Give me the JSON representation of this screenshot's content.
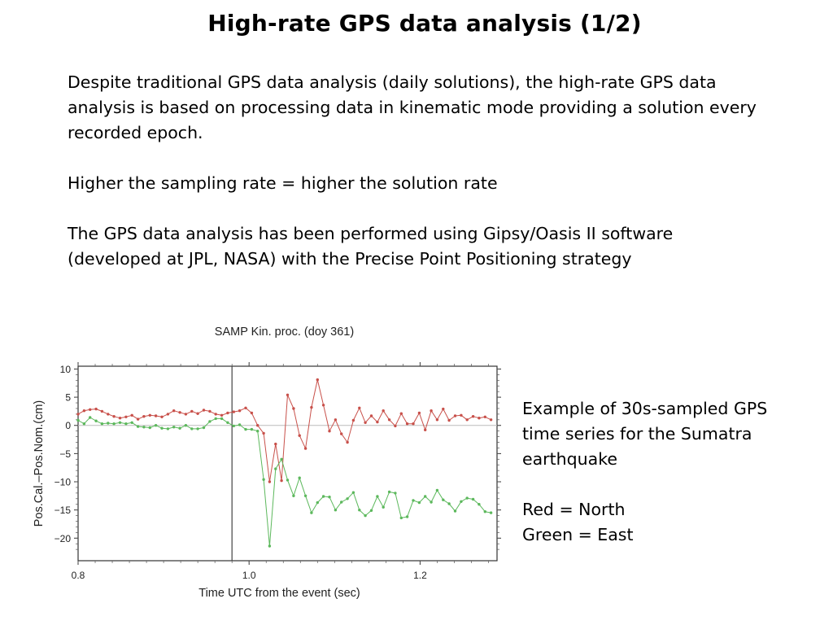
{
  "slide": {
    "title": "High-rate GPS data analysis (1/2)",
    "paragraphs": [
      "Despite traditional GPS data analysis (daily solutions), the high-rate GPS data analysis is based on processing data in kinematic mode providing a solution every recorded epoch.",
      "Higher the sampling rate = higher the solution rate",
      "The GPS data analysis has been performed using Gipsy/Oasis II software (developed at JPL, NASA) with the Precise Point Positioning strategy"
    ],
    "side_note": {
      "caption": "Example of 30s-sampled GPS time series for the Sumatra earthquake",
      "legend_red": "Red = North",
      "legend_green": "Green = East"
    }
  },
  "chart_data": {
    "type": "line",
    "title": "SAMP Kin. proc. (doy 361)",
    "xlabel": "Time UTC from the event (sec)",
    "ylabel": "Pos.Cal.–Pos.Nom.(cm)",
    "xlim": [
      0.8,
      1.29
    ],
    "ylim": [
      -24,
      10.5
    ],
    "x_ticks": [
      0.8,
      1.0,
      1.2
    ],
    "x_tick_labels": [
      "0.8",
      "1.0",
      "1.2"
    ],
    "y_ticks": [
      10,
      5,
      0,
      -5,
      -10,
      -15,
      -20
    ],
    "y_tick_labels": [
      "10",
      "5",
      "0",
      "−5",
      "−10",
      "−15",
      "−20"
    ],
    "event_line_x": 0.98,
    "zero_line": true,
    "grid": false,
    "series": [
      {
        "color": "#c8504a",
        "x": [
          0.8,
          0.807,
          0.814,
          0.821,
          0.828,
          0.835,
          0.842,
          0.849,
          0.856,
          0.863,
          0.87,
          0.877,
          0.884,
          0.891,
          0.898,
          0.905,
          0.912,
          0.919,
          0.926,
          0.933,
          0.94,
          0.947,
          0.954,
          0.961,
          0.968,
          0.975,
          0.982,
          0.989,
          0.996,
          1.003,
          1.01,
          1.017,
          1.024,
          1.031,
          1.038,
          1.045,
          1.052,
          1.059,
          1.066,
          1.073,
          1.08,
          1.087,
          1.094,
          1.101,
          1.108,
          1.115,
          1.122,
          1.129,
          1.136,
          1.143,
          1.15,
          1.157,
          1.164,
          1.171,
          1.178,
          1.185,
          1.192,
          1.199,
          1.206,
          1.213,
          1.22,
          1.227,
          1.234,
          1.241,
          1.248,
          1.255,
          1.262,
          1.269,
          1.276,
          1.283
        ],
        "y": [
          2.0,
          2.6,
          2.8,
          2.9,
          2.5,
          2.0,
          1.6,
          1.3,
          1.5,
          1.8,
          1.1,
          1.6,
          1.8,
          1.7,
          1.5,
          2.0,
          2.6,
          2.3,
          2.0,
          2.5,
          2.1,
          2.7,
          2.5,
          2.0,
          1.8,
          2.2,
          2.4,
          2.6,
          3.1,
          2.2,
          0.0,
          -1.4,
          -10.0,
          -3.3,
          -9.8,
          5.4,
          3.0,
          -1.8,
          -4.1,
          3.2,
          8.1,
          3.6,
          -1.0,
          1.0,
          -1.5,
          -3.0,
          0.9,
          3.1,
          0.5,
          1.7,
          0.6,
          2.6,
          1.0,
          -0.1,
          2.1,
          0.3,
          0.3,
          2.2,
          -0.8,
          2.6,
          1.0,
          2.9,
          0.9,
          1.7,
          1.8,
          1.0,
          1.6,
          1.3,
          1.5,
          1.0
        ]
      },
      {
        "color": "#5cb85c",
        "x": [
          0.8,
          0.807,
          0.814,
          0.821,
          0.828,
          0.835,
          0.842,
          0.849,
          0.856,
          0.863,
          0.87,
          0.877,
          0.884,
          0.891,
          0.898,
          0.905,
          0.912,
          0.919,
          0.926,
          0.933,
          0.94,
          0.947,
          0.954,
          0.961,
          0.968,
          0.975,
          0.982,
          0.989,
          0.996,
          1.003,
          1.01,
          1.017,
          1.024,
          1.031,
          1.038,
          1.045,
          1.052,
          1.059,
          1.066,
          1.073,
          1.08,
          1.087,
          1.094,
          1.101,
          1.108,
          1.115,
          1.122,
          1.129,
          1.136,
          1.143,
          1.15,
          1.157,
          1.164,
          1.171,
          1.178,
          1.185,
          1.192,
          1.199,
          1.206,
          1.213,
          1.22,
          1.227,
          1.234,
          1.241,
          1.248,
          1.255,
          1.262,
          1.269,
          1.276,
          1.283
        ],
        "y": [
          0.9,
          0.3,
          1.4,
          0.8,
          0.3,
          0.4,
          0.3,
          0.5,
          0.3,
          0.5,
          -0.2,
          -0.3,
          -0.4,
          0.0,
          -0.5,
          -0.6,
          -0.3,
          -0.5,
          0.0,
          -0.6,
          -0.6,
          -0.4,
          0.7,
          1.2,
          1.2,
          0.5,
          -0.1,
          0.1,
          -0.7,
          -0.7,
          -1.0,
          -9.6,
          -21.4,
          -7.7,
          -6.0,
          -9.7,
          -12.5,
          -9.3,
          -12.5,
          -15.5,
          -13.7,
          -12.6,
          -12.7,
          -15.0,
          -13.6,
          -13.0,
          -11.9,
          -15.0,
          -16.0,
          -15.1,
          -12.6,
          -14.5,
          -11.8,
          -12.0,
          -16.4,
          -16.2,
          -13.3,
          -13.7,
          -12.6,
          -13.6,
          -11.5,
          -13.2,
          -13.9,
          -15.2,
          -13.5,
          -12.9,
          -13.1,
          -14.0,
          -15.3,
          -15.5
        ]
      }
    ]
  }
}
